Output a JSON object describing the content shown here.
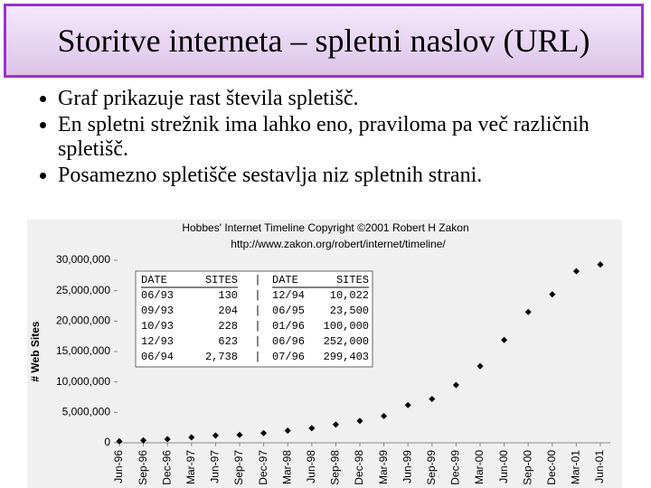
{
  "slide": {
    "title": "Storitve interneta – spletni naslov (URL)",
    "bullets": [
      "Graf prikazuje rast števila spletišč.",
      "En spletni strežnik ima lahko eno, praviloma pa več različnih spletišč.",
      "Posamezno spletišče sestavlja niz spletnih strani."
    ]
  },
  "chart_data": {
    "type": "scatter",
    "title": "Hobbes' Internet Timeline Copyright ©2001 Robert H Zakon",
    "subtitle": "http://www.zakon.org/robert/internet/timeline/",
    "y_label": "# Web Sites",
    "categories": [
      "Jun-96",
      "Sep-96",
      "Dec-96",
      "Mar-97",
      "Jun-97",
      "Sep-97",
      "Dec-97",
      "Mar-98",
      "Jun-98",
      "Sep-98",
      "Dec-98",
      "Mar-99",
      "Jun-99",
      "Sep-99",
      "Dec-99",
      "Mar-00",
      "Jun-00",
      "Sep-00",
      "Dec-00",
      "Mar-01",
      "Jun-01"
    ],
    "values": [
      250000,
      400000,
      600000,
      900000,
      1200000,
      1300000,
      1600000,
      2000000,
      2400000,
      3000000,
      3600000,
      4400000,
      6200000,
      7200000,
      9500000,
      12600000,
      16900000,
      21500000,
      24400000,
      28200000,
      29300000
    ],
    "color": "#000000",
    "ylim": [
      0,
      30000000
    ],
    "yticks": [
      {
        "value": 0,
        "label": "0"
      },
      {
        "value": 5000000,
        "label": "5,000,000"
      },
      {
        "value": 10000000,
        "label": "10,000,000"
      },
      {
        "value": 15000000,
        "label": "15,000,000"
      },
      {
        "value": 20000000,
        "label": "20,000,000"
      },
      {
        "value": 25000000,
        "label": "25,000,000"
      },
      {
        "value": 30000000,
        "label": "30,000,000"
      }
    ],
    "table": {
      "header": [
        "DATE",
        "SITES",
        "|",
        "DATE",
        "SITES"
      ],
      "rows": [
        [
          "06/93",
          "130",
          "|",
          "12/94",
          "10,022"
        ],
        [
          "09/93",
          "204",
          "|",
          "06/95",
          "23,500"
        ],
        [
          "10/93",
          "228",
          "|",
          "01/96",
          "100,000"
        ],
        [
          "12/93",
          "623",
          "|",
          "06/96",
          "252,000"
        ],
        [
          "06/94",
          "2,738",
          "|",
          "07/96",
          "299,403"
        ]
      ]
    }
  }
}
